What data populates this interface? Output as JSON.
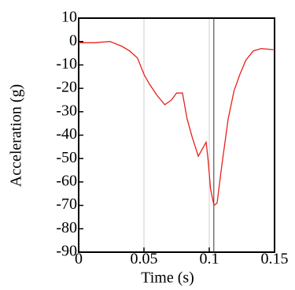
{
  "chart_data": {
    "type": "line",
    "x_label": "Time (s)",
    "y_label": "Acceleration (g)",
    "x": [
      0,
      0.012,
      0.024,
      0.033,
      0.039,
      0.045,
      0.05,
      0.054,
      0.06,
      0.066,
      0.071,
      0.075,
      0.0795,
      0.083,
      0.087,
      0.0916,
      0.0946,
      0.0976,
      0.099,
      0.101,
      0.1036,
      0.106,
      0.1096,
      0.1145,
      0.119,
      0.1235,
      0.128,
      0.1337,
      0.1398,
      0.15
    ],
    "series": [
      {
        "color": "#e8201a",
        "values": [
          -0.5,
          -0.5,
          0,
          -2,
          -4,
          -7,
          -14,
          -18,
          -23,
          -27,
          -25,
          -22,
          -22,
          -33,
          -41,
          -49,
          -46,
          -43,
          -50,
          -63,
          -70,
          -69,
          -53,
          -33,
          -21,
          -14,
          -8,
          -4,
          -3,
          -3.5
        ]
      }
    ],
    "xlim": [
      0,
      0.15
    ],
    "xticks": [
      0,
      0.05,
      0.1,
      0.15
    ],
    "ylim": [
      -90,
      10
    ],
    "yticks": [
      10,
      0,
      -10,
      -20,
      -30,
      -40,
      -50,
      -60,
      -70,
      -80,
      -90
    ],
    "grid": true,
    "cursor_x": 0.1035
  }
}
